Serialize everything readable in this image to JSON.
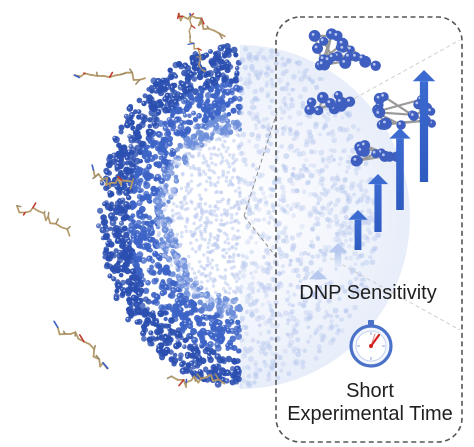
{
  "labels": {
    "dnp_sensitivity": "DNP Sensitivity",
    "time_line1": "Short",
    "time_line2": "Experimental Time"
  },
  "colors": {
    "particle_dark": "#2f55b8",
    "particle_mid": "#5a7fd6",
    "particle_light": "#c9d6f2",
    "arrow_dark": "#3b66c2",
    "arrow_light": "#b9cbee",
    "clock_ring": "#4a72c8",
    "clock_hand": "#d22020",
    "frame": "#555555"
  },
  "icons": [
    "polarizing-agent-molecule-icon",
    "stopwatch-icon",
    "growth-arrows-icon"
  ]
}
